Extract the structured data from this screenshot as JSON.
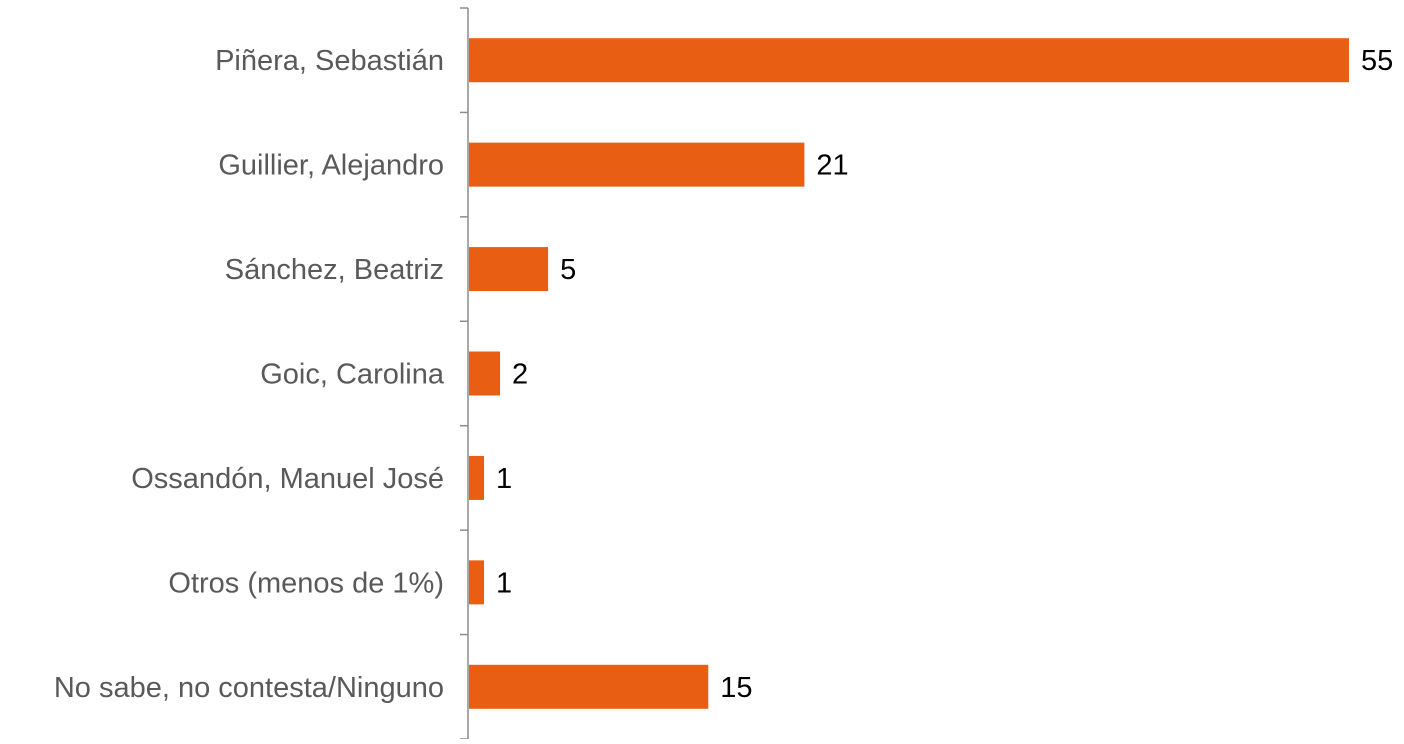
{
  "chart_data": {
    "type": "bar",
    "orientation": "horizontal",
    "title": "",
    "xlabel": "",
    "ylabel": "",
    "categories": [
      "Piñera, Sebastián",
      "Guillier, Alejandro",
      "Sánchez, Beatriz",
      "Goic, Carolina",
      "Ossandón, Manuel José",
      "Otros (menos de 1%)",
      "No sabe, no contesta/Ninguno"
    ],
    "values": [
      55,
      21,
      5,
      2,
      1,
      1,
      15
    ],
    "xlim": [
      0,
      55
    ],
    "grid": false,
    "legend": "none",
    "data_labels": true,
    "colors": {
      "bar": "#e85e13",
      "axis": "#8c8c8c",
      "label_text": "#595959",
      "value_text": "#000000"
    }
  }
}
